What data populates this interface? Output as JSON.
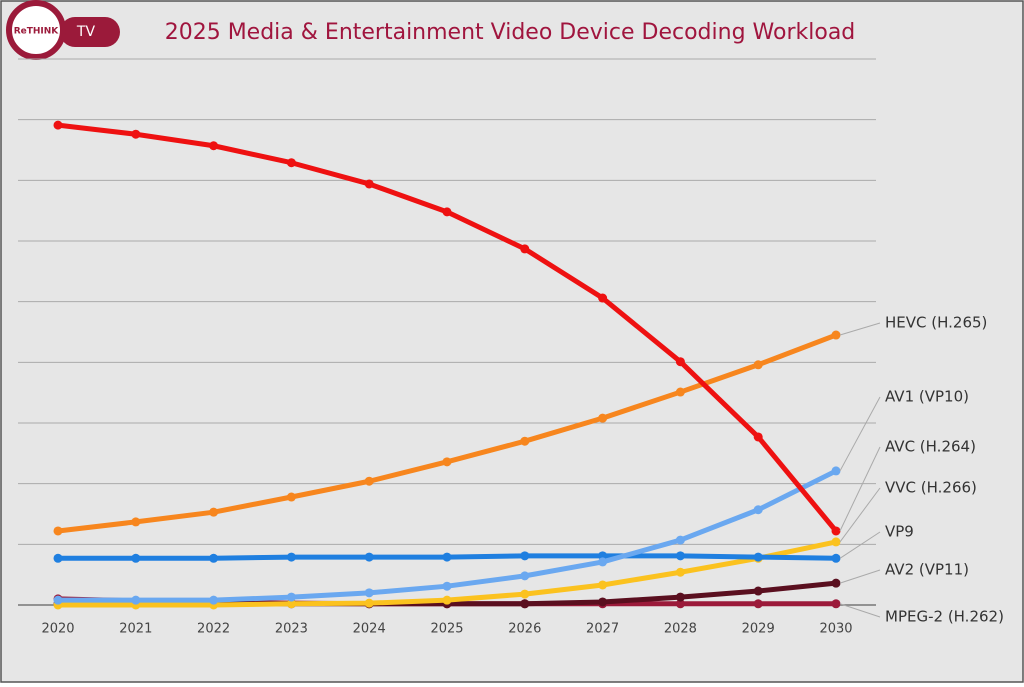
{
  "logo": {
    "brand": "ReTHINK",
    "tag": "TV"
  },
  "chart_data": {
    "type": "line",
    "title": "2025 Media & Entertainment Video Device Decoding Workload",
    "categories": [
      "2020",
      "2021",
      "2022",
      "2023",
      "2024",
      "2025",
      "2026",
      "2027",
      "2028",
      "2029",
      "2030"
    ],
    "ylim": [
      0,
      9
    ],
    "yticks": [
      0,
      1,
      2,
      3,
      4,
      5,
      6,
      7,
      8,
      9
    ],
    "ytick_labels": false,
    "grid": true,
    "series": [
      {
        "name": "AVC (H.264)",
        "color": "#ee1111",
        "values": [
          7.91,
          7.76,
          7.57,
          7.29,
          6.94,
          6.48,
          5.87,
          5.06,
          4.01,
          2.77,
          1.22
        ]
      },
      {
        "name": "HEVC (H.265)",
        "color": "#f7861e",
        "values": [
          1.22,
          1.37,
          1.53,
          1.78,
          2.04,
          2.36,
          2.7,
          3.08,
          3.51,
          3.96,
          4.45
        ]
      },
      {
        "name": "AV1 (VP10)",
        "color": "#6aa8f0",
        "values": [
          0.08,
          0.08,
          0.08,
          0.13,
          0.2,
          0.31,
          0.48,
          0.71,
          1.07,
          1.57,
          2.21
        ]
      },
      {
        "name": "VP9",
        "color": "#1f7fe0",
        "values": [
          0.77,
          0.77,
          0.77,
          0.79,
          0.79,
          0.79,
          0.81,
          0.81,
          0.81,
          0.79,
          0.77
        ]
      },
      {
        "name": "VVC (H.266)",
        "color": "#fbc21f",
        "values": [
          0,
          0,
          0,
          0.02,
          0.03,
          0.08,
          0.18,
          0.33,
          0.54,
          0.77,
          1.04
        ]
      },
      {
        "name": "AV2 (VP11)",
        "color": "#5a0f1f",
        "values": [
          0.02,
          0.02,
          0.02,
          0.02,
          0.02,
          0.02,
          0.02,
          0.05,
          0.13,
          0.23,
          0.36
        ]
      },
      {
        "name": "MPEG-2 (H.262)",
        "color": "#9b1a3a",
        "values": [
          0.1,
          0.07,
          0.05,
          0.03,
          0.02,
          0.02,
          0.02,
          0.02,
          0.02,
          0.02,
          0.02
        ]
      }
    ]
  }
}
